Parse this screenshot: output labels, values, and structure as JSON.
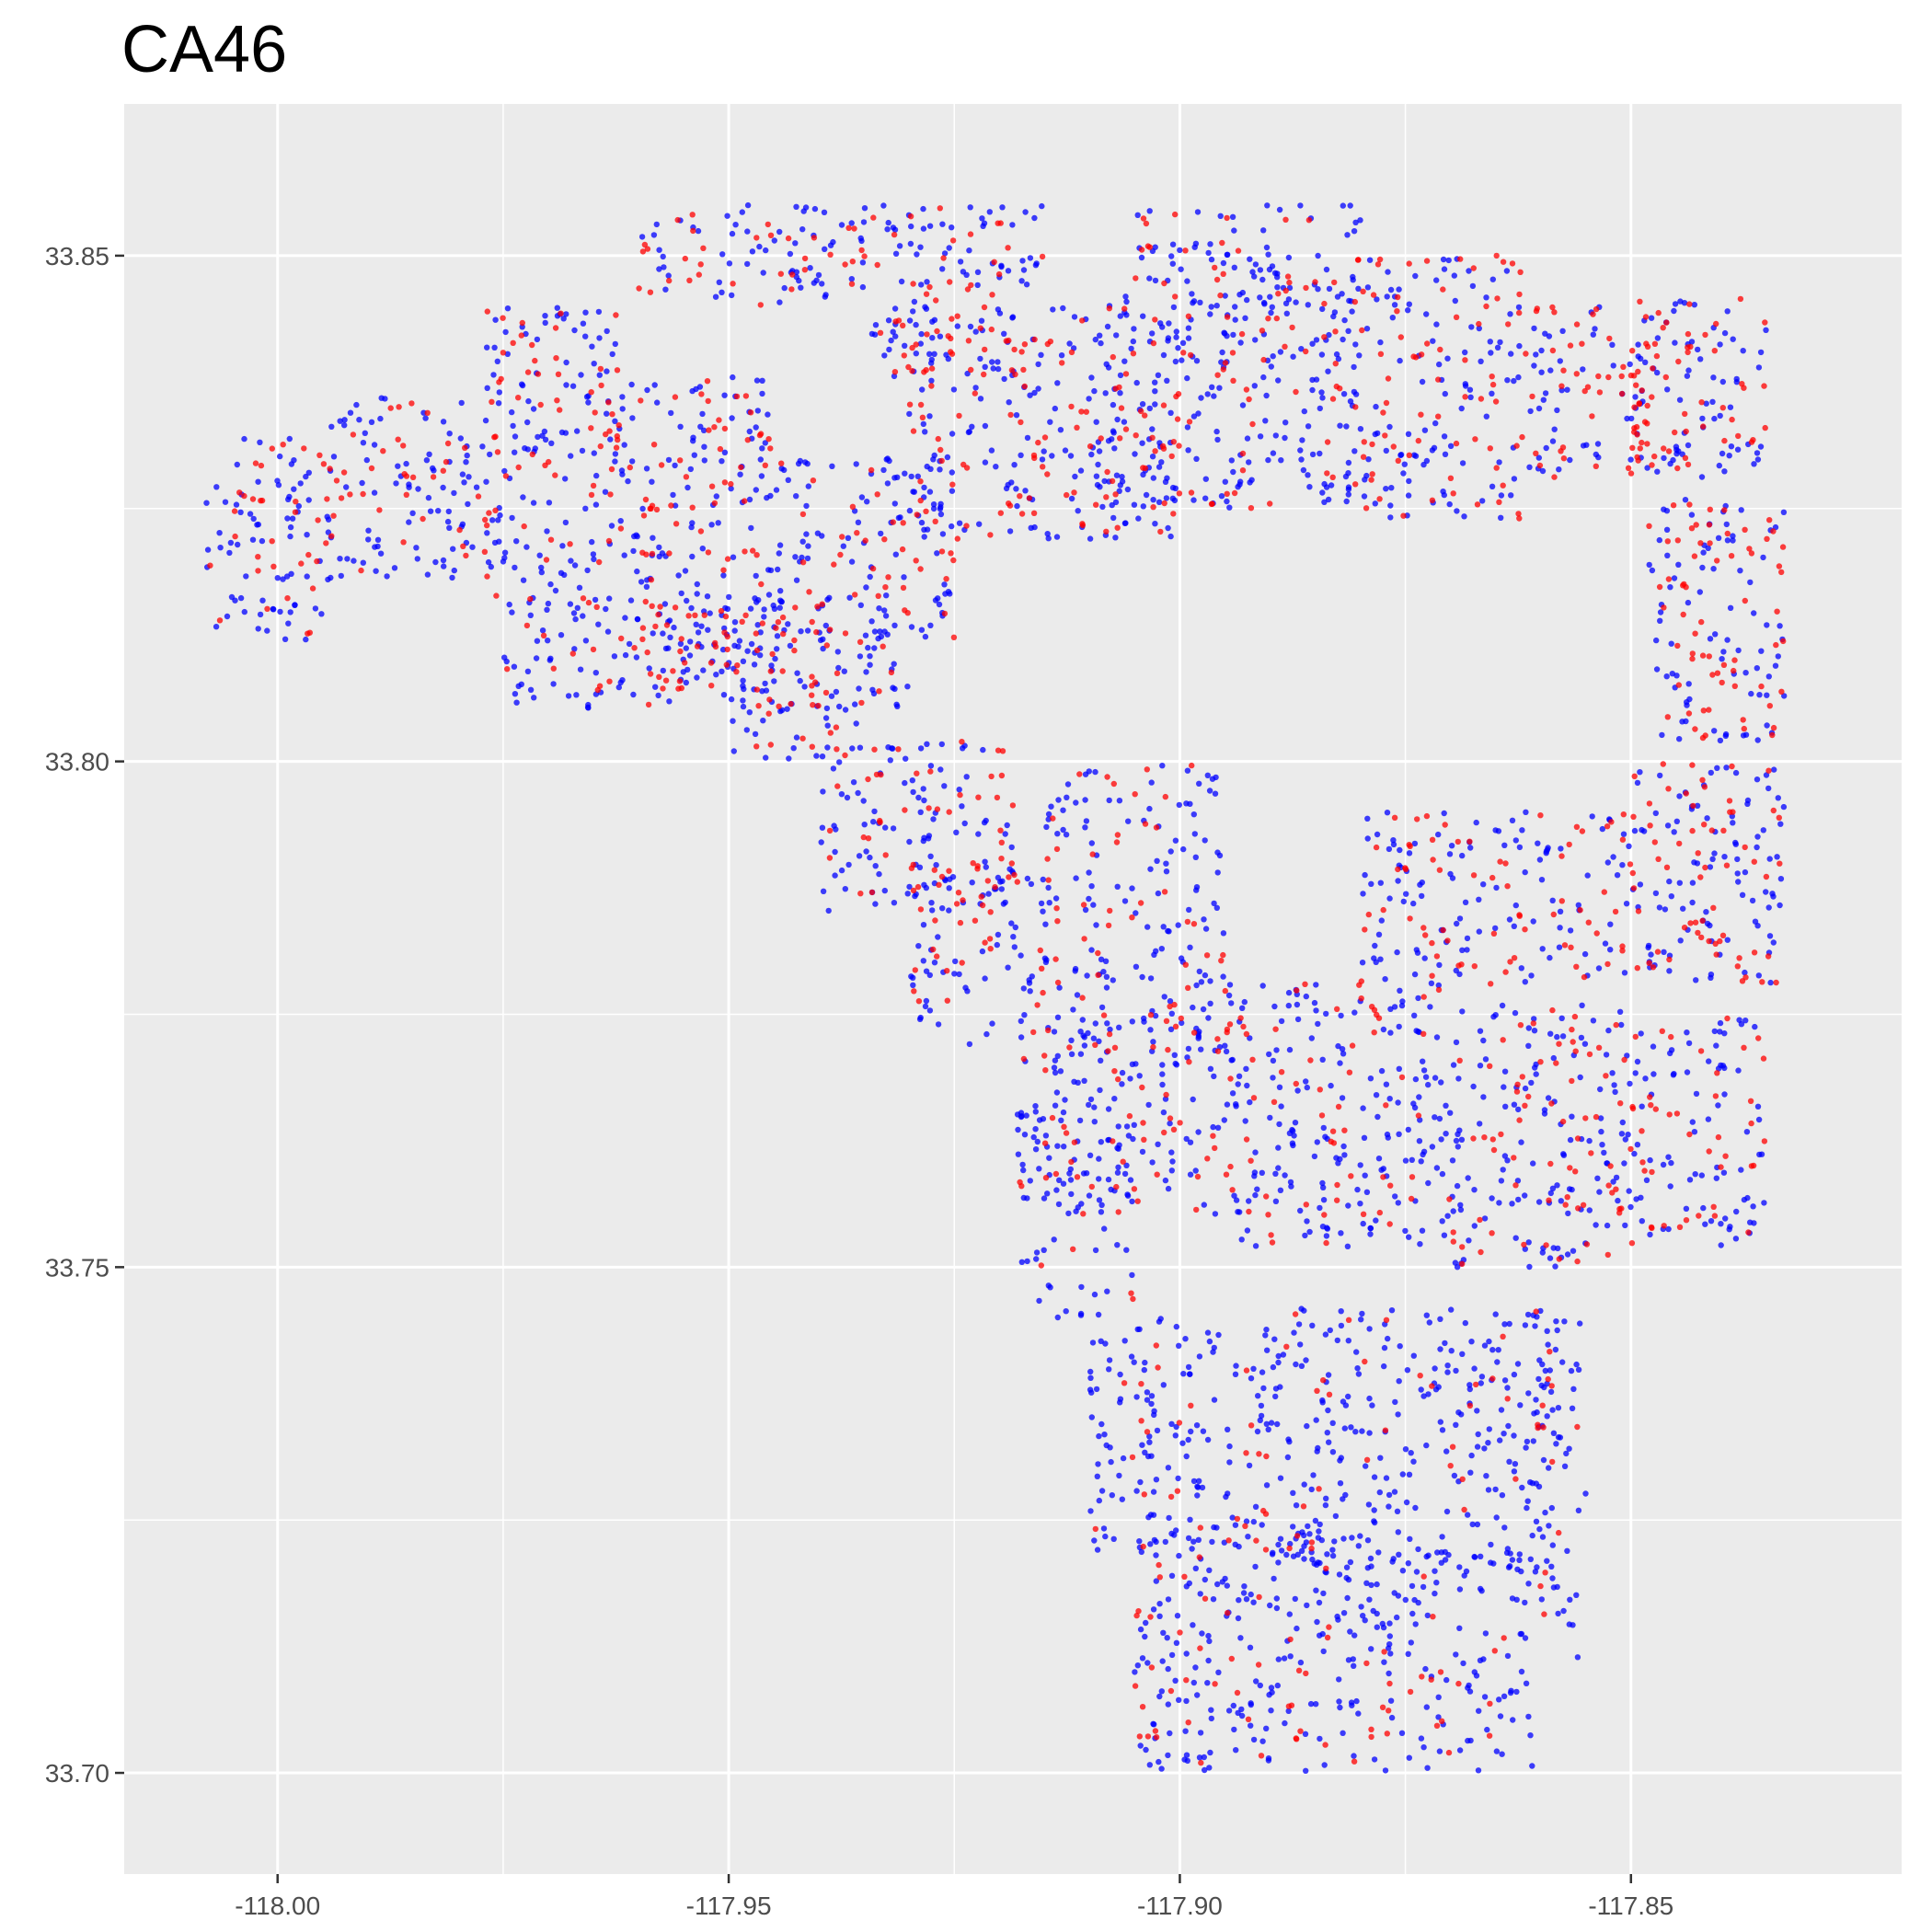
{
  "chart_data": {
    "type": "scatter",
    "title": "CA46",
    "xlabel": "",
    "ylabel": "",
    "xlim": [
      -118.017,
      -117.82
    ],
    "ylim": [
      33.69,
      33.865
    ],
    "x_ticks": [
      -118.0,
      -117.95,
      -117.9,
      -117.85
    ],
    "x_tick_labels": [
      "-118.00",
      "-117.95",
      "-117.90",
      "-117.85"
    ],
    "y_ticks": [
      33.7,
      33.75,
      33.8,
      33.85
    ],
    "y_tick_labels": [
      "33.70",
      "33.75",
      "33.80",
      "33.85"
    ],
    "grid": true,
    "legend": "none",
    "panel_background": "#ebebeb",
    "series": [
      {
        "color": "#0000ff",
        "regions": [
          {
            "lon": [
              -118.008,
              -117.994
            ],
            "lat": [
              33.812,
              33.832
            ],
            "density": 0.8
          },
          {
            "lon": [
              -117.995,
              -117.975
            ],
            "lat": [
              33.818,
              33.836
            ],
            "density": 0.8
          },
          {
            "lon": [
              -117.977,
              -117.962
            ],
            "lat": [
              33.815,
              33.845
            ],
            "density": 0.8
          },
          {
            "lon": [
              -117.962,
              -117.945
            ],
            "lat": [
              33.808,
              33.838
            ],
            "density": 0.8
          },
          {
            "lon": [
              -117.975,
              -117.93
            ],
            "lat": [
              33.805,
              33.816
            ],
            "density": 0.9
          },
          {
            "lon": [
              -117.945,
              -117.925
            ],
            "lat": [
              33.812,
              33.83
            ],
            "density": 0.8
          },
          {
            "lon": [
              -117.96,
              -117.935
            ],
            "lat": [
              33.845,
              33.855
            ],
            "density": 0.8
          },
          {
            "lon": [
              -117.935,
              -117.915
            ],
            "lat": [
              33.838,
              33.855
            ],
            "density": 0.8
          },
          {
            "lon": [
              -117.95,
              -117.935
            ],
            "lat": [
              33.8,
              33.808
            ],
            "density": 0.8
          },
          {
            "lon": [
              -117.94,
              -117.918
            ],
            "lat": [
              33.785,
              33.802
            ],
            "density": 0.8
          },
          {
            "lon": [
              -117.93,
              -117.915
            ],
            "lat": [
              33.772,
              33.79
            ],
            "density": 0.7
          },
          {
            "lon": [
              -117.93,
              -117.9
            ],
            "lat": [
              33.822,
              33.845
            ],
            "density": 0.7
          },
          {
            "lon": [
              -117.91,
              -117.88
            ],
            "lat": [
              33.825,
              33.848
            ],
            "density": 0.9
          },
          {
            "lon": [
              -117.905,
              -117.88
            ],
            "lat": [
              33.845,
              33.855
            ],
            "density": 0.8
          },
          {
            "lon": [
              -117.88,
              -117.862
            ],
            "lat": [
              33.824,
              33.85
            ],
            "density": 0.7
          },
          {
            "lon": [
              -117.862,
              -117.848
            ],
            "lat": [
              33.828,
              33.845
            ],
            "density": 0.6
          },
          {
            "lon": [
              -117.85,
              -117.835
            ],
            "lat": [
              33.828,
              33.846
            ],
            "density": 0.8
          },
          {
            "lon": [
              -117.848,
              -117.833
            ],
            "lat": [
              33.802,
              33.826
            ],
            "density": 0.7
          },
          {
            "lon": [
              -117.85,
              -117.833
            ],
            "lat": [
              33.778,
              33.8
            ],
            "density": 0.8
          },
          {
            "lon": [
              -117.88,
              -117.85
            ],
            "lat": [
              33.778,
              33.795
            ],
            "density": 0.7
          },
          {
            "lon": [
              -117.915,
              -117.895
            ],
            "lat": [
              33.77,
              33.8
            ],
            "density": 0.7
          },
          {
            "lon": [
              -117.918,
              -117.895
            ],
            "lat": [
              33.755,
              33.775
            ],
            "density": 0.8
          },
          {
            "lon": [
              -117.895,
              -117.87
            ],
            "lat": [
              33.752,
              33.778
            ],
            "density": 0.9
          },
          {
            "lon": [
              -117.87,
              -117.848
            ],
            "lat": [
              33.75,
              33.776
            ],
            "density": 0.8
          },
          {
            "lon": [
              -117.848,
              -117.835
            ],
            "lat": [
              33.752,
              33.775
            ],
            "density": 0.7
          },
          {
            "lon": [
              -117.918,
              -117.905
            ],
            "lat": [
              33.745,
              33.765
            ],
            "density": 0.7
          },
          {
            "lon": [
              -117.91,
              -117.89
            ],
            "lat": [
              33.722,
              33.745
            ],
            "density": 0.9
          },
          {
            "lon": [
              -117.89,
              -117.858
            ],
            "lat": [
              33.72,
              33.746
            ],
            "density": 1.0
          },
          {
            "lon": [
              -117.905,
              -117.882
            ],
            "lat": [
              33.7,
              33.725
            ],
            "density": 0.9
          },
          {
            "lon": [
              -117.882,
              -117.86
            ],
            "lat": [
              33.7,
              33.722
            ],
            "density": 0.8
          },
          {
            "lon": [
              -117.86,
              -117.855
            ],
            "lat": [
              33.71,
              33.745
            ],
            "density": 0.7
          }
        ]
      },
      {
        "color": "#ff0000",
        "regions": [
          {
            "lon": [
              -118.008,
              -117.994
            ],
            "lat": [
              33.812,
              33.832
            ],
            "density": 0.35
          },
          {
            "lon": [
              -117.995,
              -117.975
            ],
            "lat": [
              33.818,
              33.836
            ],
            "density": 0.35
          },
          {
            "lon": [
              -117.977,
              -117.962
            ],
            "lat": [
              33.815,
              33.845
            ],
            "density": 0.4
          },
          {
            "lon": [
              -117.962,
              -117.945
            ],
            "lat": [
              33.808,
              33.838
            ],
            "density": 0.45
          },
          {
            "lon": [
              -117.975,
              -117.93
            ],
            "lat": [
              33.805,
              33.816
            ],
            "density": 0.3
          },
          {
            "lon": [
              -117.945,
              -117.925
            ],
            "lat": [
              33.812,
              33.83
            ],
            "density": 0.35
          },
          {
            "lon": [
              -117.96,
              -117.935
            ],
            "lat": [
              33.845,
              33.855
            ],
            "density": 0.4
          },
          {
            "lon": [
              -117.935,
              -117.915
            ],
            "lat": [
              33.838,
              33.855
            ],
            "density": 0.45
          },
          {
            "lon": [
              -117.95,
              -117.935
            ],
            "lat": [
              33.8,
              33.808
            ],
            "density": 0.45
          },
          {
            "lon": [
              -117.94,
              -117.918
            ],
            "lat": [
              33.785,
              33.802
            ],
            "density": 0.4
          },
          {
            "lon": [
              -117.93,
              -117.915
            ],
            "lat": [
              33.772,
              33.79
            ],
            "density": 0.3
          },
          {
            "lon": [
              -117.93,
              -117.9
            ],
            "lat": [
              33.822,
              33.845
            ],
            "density": 0.35
          },
          {
            "lon": [
              -117.91,
              -117.88
            ],
            "lat": [
              33.825,
              33.848
            ],
            "density": 0.3
          },
          {
            "lon": [
              -117.905,
              -117.88
            ],
            "lat": [
              33.845,
              33.855
            ],
            "density": 0.3
          },
          {
            "lon": [
              -117.88,
              -117.862
            ],
            "lat": [
              33.824,
              33.85
            ],
            "density": 0.45
          },
          {
            "lon": [
              -117.862,
              -117.848
            ],
            "lat": [
              33.828,
              33.845
            ],
            "density": 0.55
          },
          {
            "lon": [
              -117.85,
              -117.835
            ],
            "lat": [
              33.828,
              33.846
            ],
            "density": 0.65
          },
          {
            "lon": [
              -117.848,
              -117.833
            ],
            "lat": [
              33.802,
              33.826
            ],
            "density": 0.55
          },
          {
            "lon": [
              -117.85,
              -117.833
            ],
            "lat": [
              33.778,
              33.8
            ],
            "density": 0.5
          },
          {
            "lon": [
              -117.88,
              -117.85
            ],
            "lat": [
              33.778,
              33.795
            ],
            "density": 0.4
          },
          {
            "lon": [
              -117.915,
              -117.895
            ],
            "lat": [
              33.77,
              33.8
            ],
            "density": 0.25
          },
          {
            "lon": [
              -117.918,
              -117.895
            ],
            "lat": [
              33.755,
              33.775
            ],
            "density": 0.25
          },
          {
            "lon": [
              -117.895,
              -117.87
            ],
            "lat": [
              33.752,
              33.778
            ],
            "density": 0.3
          },
          {
            "lon": [
              -117.87,
              -117.848
            ],
            "lat": [
              33.75,
              33.776
            ],
            "density": 0.4
          },
          {
            "lon": [
              -117.848,
              -117.835
            ],
            "lat": [
              33.752,
              33.775
            ],
            "density": 0.35
          },
          {
            "lon": [
              -117.918,
              -117.905
            ],
            "lat": [
              33.745,
              33.765
            ],
            "density": 0.15
          },
          {
            "lon": [
              -117.91,
              -117.89
            ],
            "lat": [
              33.722,
              33.745
            ],
            "density": 0.15
          },
          {
            "lon": [
              -117.89,
              -117.858
            ],
            "lat": [
              33.72,
              33.746
            ],
            "density": 0.12
          },
          {
            "lon": [
              -117.905,
              -117.882
            ],
            "lat": [
              33.7,
              33.725
            ],
            "density": 0.25
          },
          {
            "lon": [
              -117.882,
              -117.86
            ],
            "lat": [
              33.7,
              33.722
            ],
            "density": 0.15
          },
          {
            "lon": [
              -117.86,
              -117.855
            ],
            "lat": [
              33.71,
              33.745
            ],
            "density": 0.1
          }
        ]
      }
    ]
  }
}
